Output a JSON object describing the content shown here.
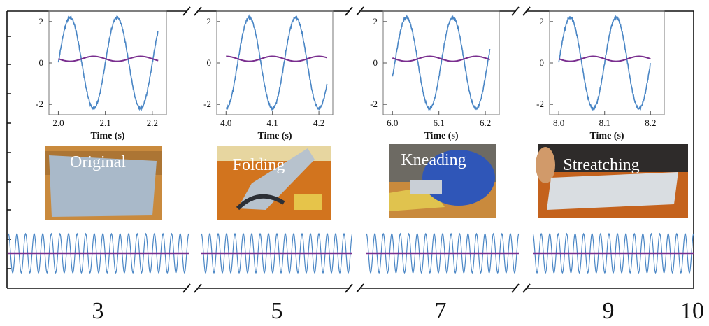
{
  "chart_data": {
    "type": "line",
    "insets": [
      {
        "xlabel": "Time (s)",
        "xticks": [
          "2.0",
          "2.1",
          "2.2"
        ],
        "xlim": [
          1.98,
          2.23
        ],
        "yticks": [
          "2",
          "0",
          "-2"
        ],
        "ylim": [
          -2.5,
          2.5
        ],
        "photo_label": "Original",
        "phase": 0.25,
        "end_frac": 0.93
      },
      {
        "xlabel": "Time (s)",
        "xticks": [
          "4.0",
          "4.1",
          "4.2"
        ],
        "xlim": [
          3.98,
          4.23
        ],
        "yticks": [
          "2",
          "0",
          "-2"
        ],
        "ylim": [
          -2.5,
          2.5
        ],
        "photo_label": "Folding",
        "phase": 0.0,
        "end_frac": 0.95
      },
      {
        "xlabel": "Time (s)",
        "xticks": [
          "6.0",
          "6.1",
          "6.2"
        ],
        "xlim": [
          5.98,
          6.23
        ],
        "yticks": [
          "2",
          "0",
          "-2"
        ],
        "ylim": [
          -2.5,
          2.5
        ],
        "photo_label": "Kneading",
        "phase": 0.2,
        "end_frac": 0.92
      },
      {
        "xlabel": "Time (s)",
        "xticks": [
          "8.0",
          "8.1",
          "8.2"
        ],
        "xlim": [
          7.98,
          8.23
        ],
        "yticks": [
          "2",
          "0",
          "-2"
        ],
        "ylim": [
          -2.5,
          2.5
        ],
        "photo_label": "Streatching",
        "phase": 0.25,
        "end_frac": 0.88
      }
    ],
    "series": [
      {
        "amplitude": 2.2,
        "period": 0.1,
        "color": "#4a86c5"
      },
      {
        "amplitude": 0.12,
        "offset": 0.2,
        "period": 0.1,
        "color": "#7a2f8f"
      }
    ],
    "main_axis": {
      "xticks": [
        "3",
        "5",
        "7",
        "9",
        "10"
      ]
    }
  }
}
